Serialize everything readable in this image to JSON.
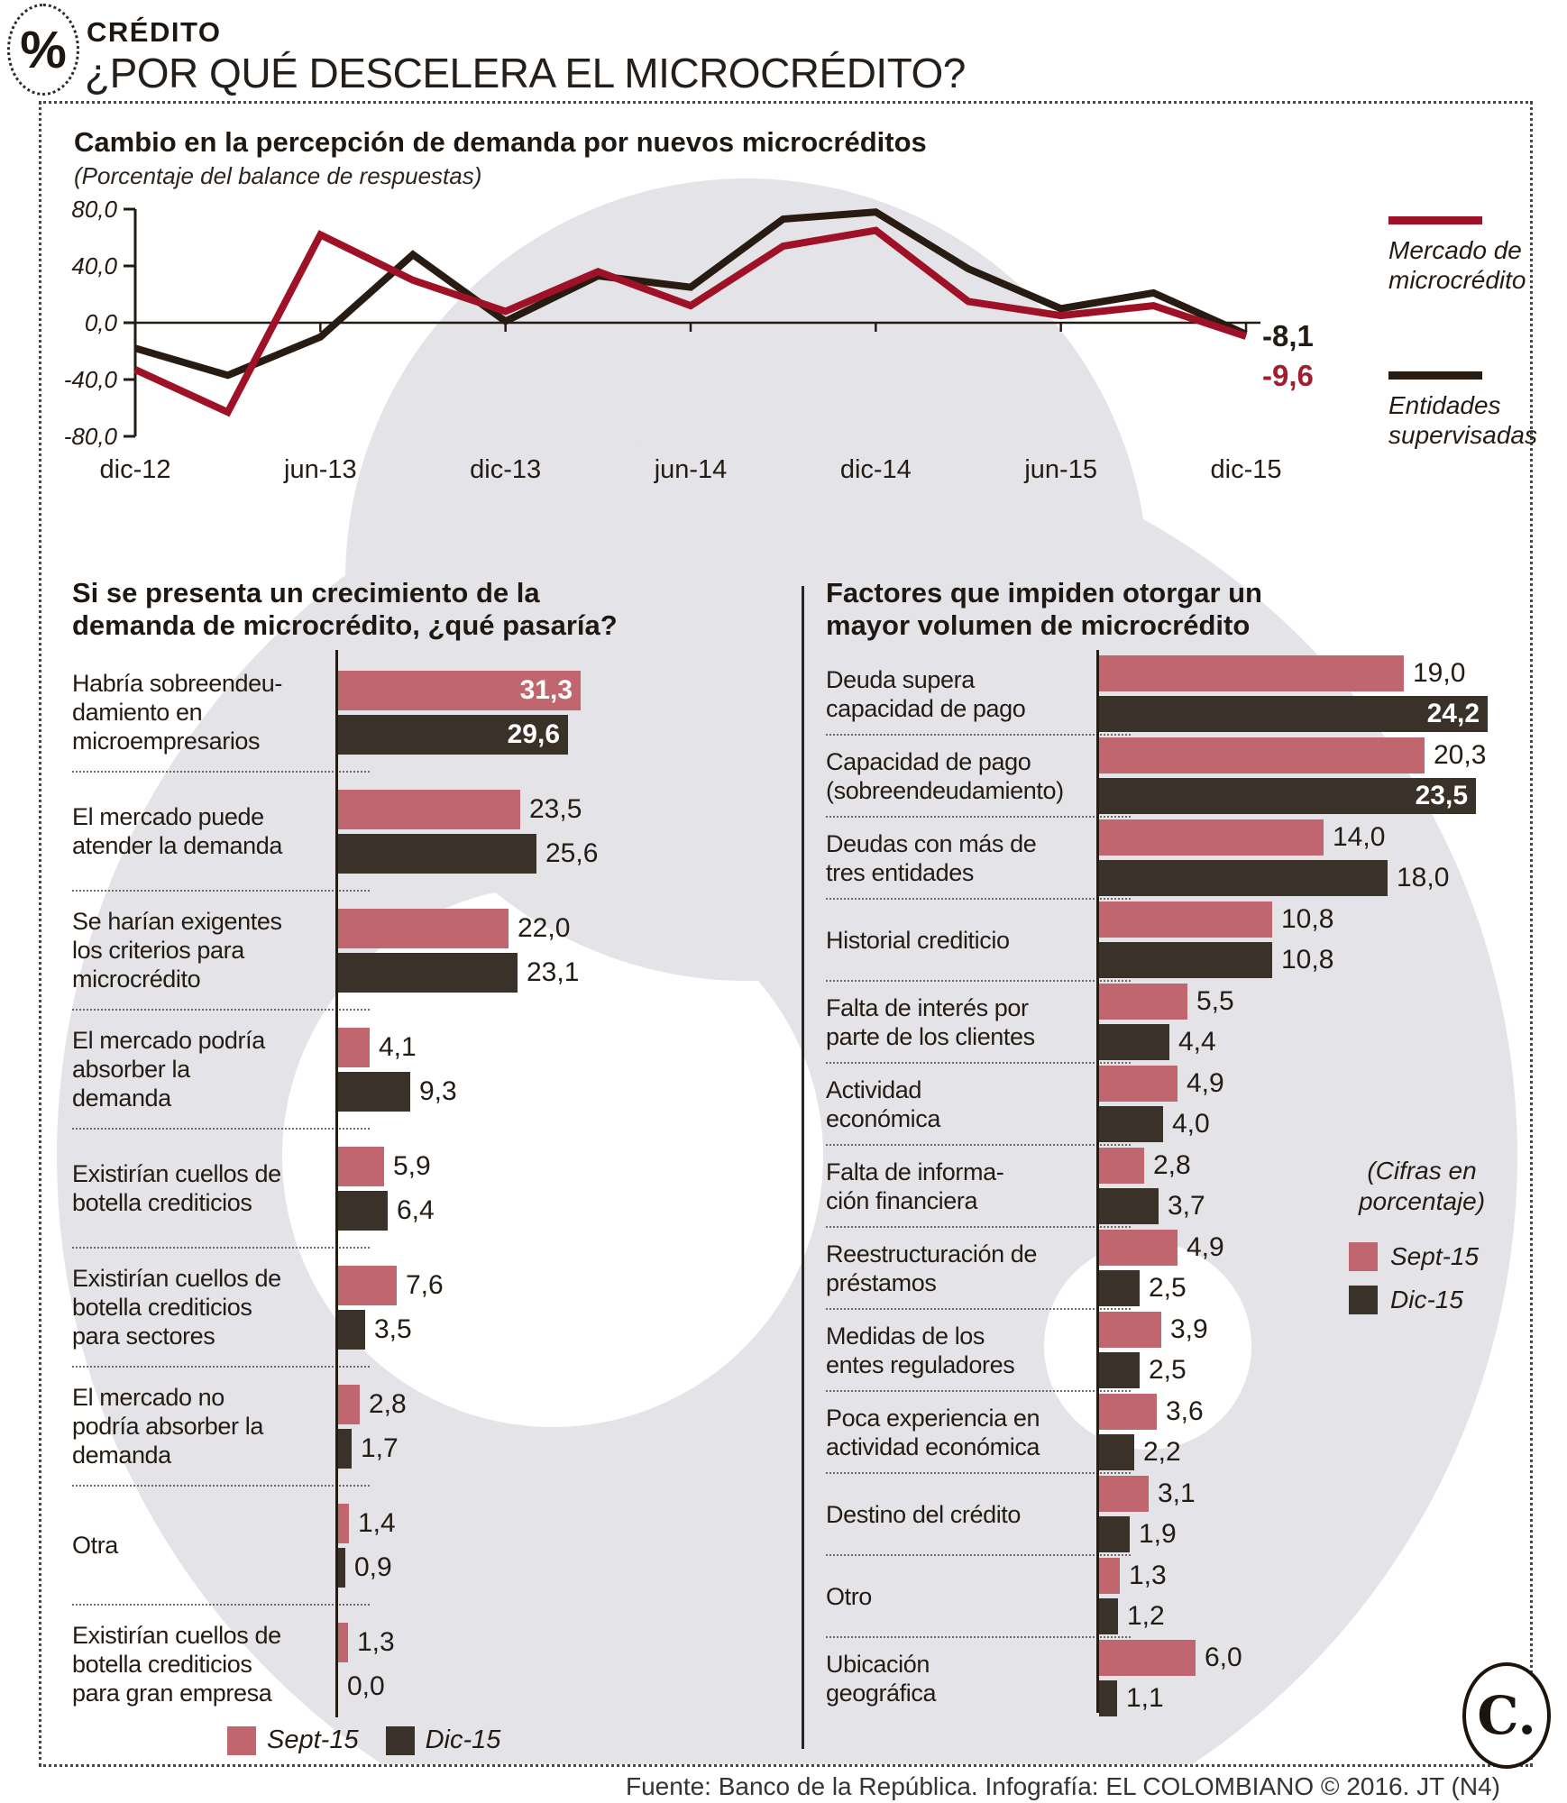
{
  "header": {
    "icon": "%",
    "kicker": "CRÉDITO",
    "title": "¿POR QUÉ DESCELERA EL MICROCRÉDITO?"
  },
  "colors": {
    "sept": "#c0666f",
    "dic": "#3a3129",
    "mercado_line": "#9e1126",
    "entidades_line": "#281c12",
    "watermark": "#e4e3e7",
    "ink": "#241b13",
    "red_label": "#a31d31"
  },
  "chart_data": [
    {
      "type": "line",
      "title": "Cambio en la percepción de demanda por nuevos microcréditos",
      "subtitle": "(Porcentaje del balance de respuestas)",
      "x": [
        "dic-12",
        "mar-13",
        "jun-13",
        "sep-13",
        "dic-13",
        "mar-14",
        "jun-14",
        "sep-14",
        "dic-14",
        "mar-15",
        "jun-15",
        "sep-15",
        "dic-15"
      ],
      "x_tick_labels": [
        "dic-12",
        "jun-13",
        "dic-13",
        "jun-14",
        "dic-14",
        "jun-15",
        "dic-15"
      ],
      "ylim": [
        -80,
        80
      ],
      "yticks": [
        80,
        40,
        0,
        -40,
        -80
      ],
      "grid": false,
      "legend_position": "right",
      "series": [
        {
          "name": "Mercado de microcrédito",
          "legend_lines": [
            "Mercado de",
            "microcrédito"
          ],
          "color": "#9e1126",
          "values": [
            -33,
            -63,
            62,
            30,
            8,
            36,
            12,
            54,
            65,
            15,
            5,
            12,
            -9.6
          ],
          "end_label": "-9,6",
          "end_label_color": "#a31d31"
        },
        {
          "name": "Entidades supervisadas",
          "legend_lines": [
            "Entidades",
            "supervisadas"
          ],
          "color": "#281c12",
          "values": [
            -18,
            -37,
            -10,
            48,
            1,
            33,
            25,
            73,
            78,
            38,
            10,
            21,
            -8.1
          ],
          "end_label": "-8,1",
          "end_label_color": "#241b13"
        }
      ]
    },
    {
      "type": "bar",
      "orientation": "horizontal",
      "title_lines": [
        "Si se presenta un crecimiento de la",
        "demanda de microcrédito, ¿qué pasaría?"
      ],
      "series_names": [
        "Sept-15",
        "Dic-15"
      ],
      "legend": [
        "Sept-15",
        "Dic-15"
      ],
      "unit": "porcentaje",
      "label_w": 292,
      "scale": 8.6,
      "categories": [
        {
          "lines": [
            "Habría sobreendeu-",
            "damiento en",
            "microempresarios"
          ],
          "sept": 31.3,
          "dic": 29.6,
          "inside": [
            "sept",
            "dic"
          ]
        },
        {
          "lines": [
            "El mercado puede",
            "atender la demanda"
          ],
          "sept": 23.5,
          "dic": 25.6
        },
        {
          "lines": [
            "Se harían exigentes",
            "los criterios para",
            "microcrédito"
          ],
          "sept": 22.0,
          "dic": 23.1
        },
        {
          "lines": [
            "El mercado podría",
            "absorber la",
            "demanda"
          ],
          "sept": 4.1,
          "dic": 9.3
        },
        {
          "lines": [
            "Existirían cuellos de",
            "botella crediticios"
          ],
          "sept": 5.9,
          "dic": 6.4
        },
        {
          "lines": [
            "Existirían cuellos de",
            "botella crediticios",
            "para sectores"
          ],
          "sept": 7.6,
          "dic": 3.5
        },
        {
          "lines": [
            "El mercado no",
            "podría absorber la",
            "demanda"
          ],
          "sept": 2.8,
          "dic": 1.7
        },
        {
          "lines": [
            "Otra"
          ],
          "sept": 1.4,
          "dic": 0.9
        },
        {
          "lines": [
            "Existirían cuellos de",
            "botella crediticios",
            "para gran empresa"
          ],
          "sept": 1.3,
          "dic": 0.0
        }
      ]
    },
    {
      "type": "bar",
      "orientation": "horizontal",
      "title_lines": [
        "Factores que impiden otorgar un",
        "mayor volumen de microcrédito"
      ],
      "series_names": [
        "Sept-15",
        "Dic-15"
      ],
      "legend": [
        "Sept-15",
        "Dic-15"
      ],
      "note_lines": [
        "(Cifras en",
        "porcentaje)"
      ],
      "unit": "porcentaje",
      "label_w": 300,
      "scale": 17.8,
      "categories": [
        {
          "lines": [
            "Deuda supera",
            "capacidad de pago"
          ],
          "sept": 19.0,
          "dic": 24.2,
          "inside": [
            "dic"
          ]
        },
        {
          "lines": [
            "Capacidad de pago",
            "(sobreendeudamiento)"
          ],
          "sept": 20.3,
          "dic": 23.5,
          "inside": [
            "dic"
          ]
        },
        {
          "lines": [
            "Deudas con más de",
            "tres entidades"
          ],
          "sept": 14.0,
          "dic": 18.0
        },
        {
          "lines": [
            "Historial crediticio"
          ],
          "sept": 10.8,
          "dic": 10.8
        },
        {
          "lines": [
            "Falta de interés por",
            "parte de los clientes"
          ],
          "sept": 5.5,
          "dic": 4.4
        },
        {
          "lines": [
            "Actividad",
            "económica"
          ],
          "sept": 4.9,
          "dic": 4.0
        },
        {
          "lines": [
            "Falta de informa-",
            "ción financiera"
          ],
          "sept": 2.8,
          "dic": 3.7
        },
        {
          "lines": [
            "Reestructuración de",
            "préstamos"
          ],
          "sept": 4.9,
          "dic": 2.5
        },
        {
          "lines": [
            "Medidas de los",
            "entes reguladores"
          ],
          "sept": 3.9,
          "dic": 2.5
        },
        {
          "lines": [
            "Poca experiencia en",
            "actividad económica"
          ],
          "sept": 3.6,
          "dic": 2.2
        },
        {
          "lines": [
            "Destino del crédito"
          ],
          "sept": 3.1,
          "dic": 1.9
        },
        {
          "lines": [
            "Otro"
          ],
          "sept": 1.3,
          "dic": 1.2
        },
        {
          "lines": [
            "Ubicación",
            "geográfica"
          ],
          "sept": 6.0,
          "dic": 1.1
        }
      ]
    }
  ],
  "footer": {
    "source": "Fuente: Banco de la República. Infografía: EL COLOMBIANO © 2016. JT (N4)",
    "logo": "C."
  }
}
